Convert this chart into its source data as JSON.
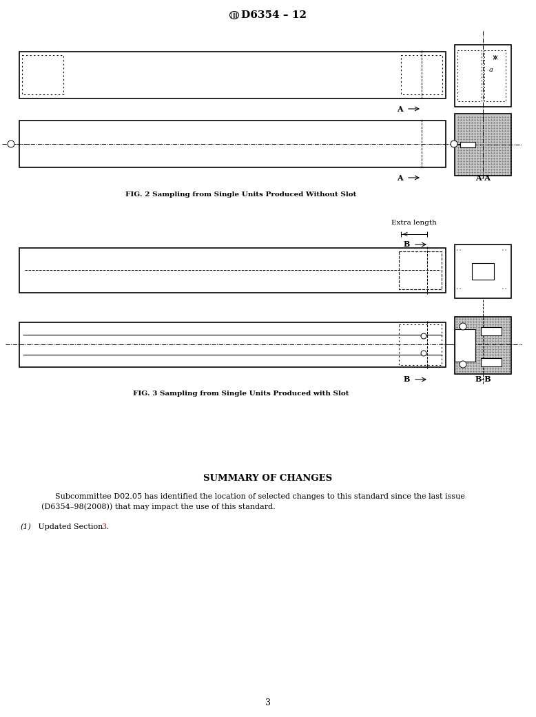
{
  "title": "D6354 – 12",
  "fig2_caption": "FIG. 2 Sampling from Single Units Produced Without Slot",
  "fig3_caption": "FIG. 3 Sampling from Single Units Produced with Slot",
  "summary_title": "SUMMARY OF CHANGES",
  "summary_line1": "Subcommittee D02.05 has identified the location of selected changes to this standard since the last issue",
  "summary_line2": "(D6354–98(2008)) that may impact the use of this standard.",
  "item_prefix": "(1)",
  "item_text": " Updated Section ",
  "item_num": "3",
  "item_period": ".",
  "page_number": "3",
  "bg_color": "#ffffff",
  "lc": "#000000",
  "hatch_gray": "#c8c8c8",
  "red": "#cc0000"
}
